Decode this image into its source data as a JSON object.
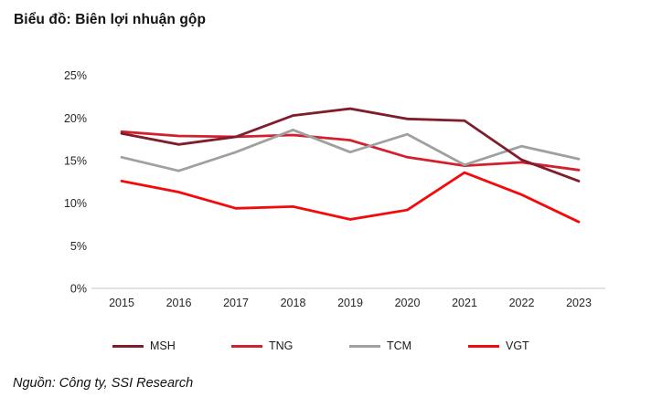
{
  "title": "Biểu đồ: Biên lợi nhuận gộp",
  "source": "Nguồn: Công ty, SSI Research",
  "chart_data": {
    "type": "line",
    "title": "Biểu đồ: Biên lợi nhuận gộp",
    "xlabel": "",
    "ylabel": "",
    "x": [
      "2015",
      "2016",
      "2017",
      "2018",
      "2019",
      "2020",
      "2021",
      "2022",
      "2023"
    ],
    "series": [
      {
        "name": "MSH",
        "color": "#7F1D2B",
        "values": [
          18.2,
          16.9,
          17.8,
          20.3,
          21.1,
          19.9,
          19.7,
          15.1,
          12.6
        ]
      },
      {
        "name": "TNG",
        "color": "#D2202E",
        "values": [
          18.4,
          17.9,
          17.8,
          18.0,
          17.4,
          15.4,
          14.4,
          14.8,
          13.9
        ]
      },
      {
        "name": "TCM",
        "color": "#A0A0A0",
        "values": [
          15.4,
          13.8,
          16.0,
          18.6,
          16.0,
          18.1,
          14.5,
          16.7,
          15.2
        ]
      },
      {
        "name": "VGT",
        "color": "#F30B0B",
        "values": [
          12.6,
          11.3,
          9.4,
          9.6,
          8.1,
          9.2,
          13.6,
          11.0,
          7.8
        ]
      }
    ],
    "ylim": [
      0,
      25
    ],
    "yticks": [
      0,
      5,
      10,
      15,
      20,
      25
    ],
    "ytick_suffix": "%",
    "grid": false,
    "legend_position": "bottom",
    "axis_line_color": "#D9D9D9",
    "tick_label_color": "#262626"
  }
}
